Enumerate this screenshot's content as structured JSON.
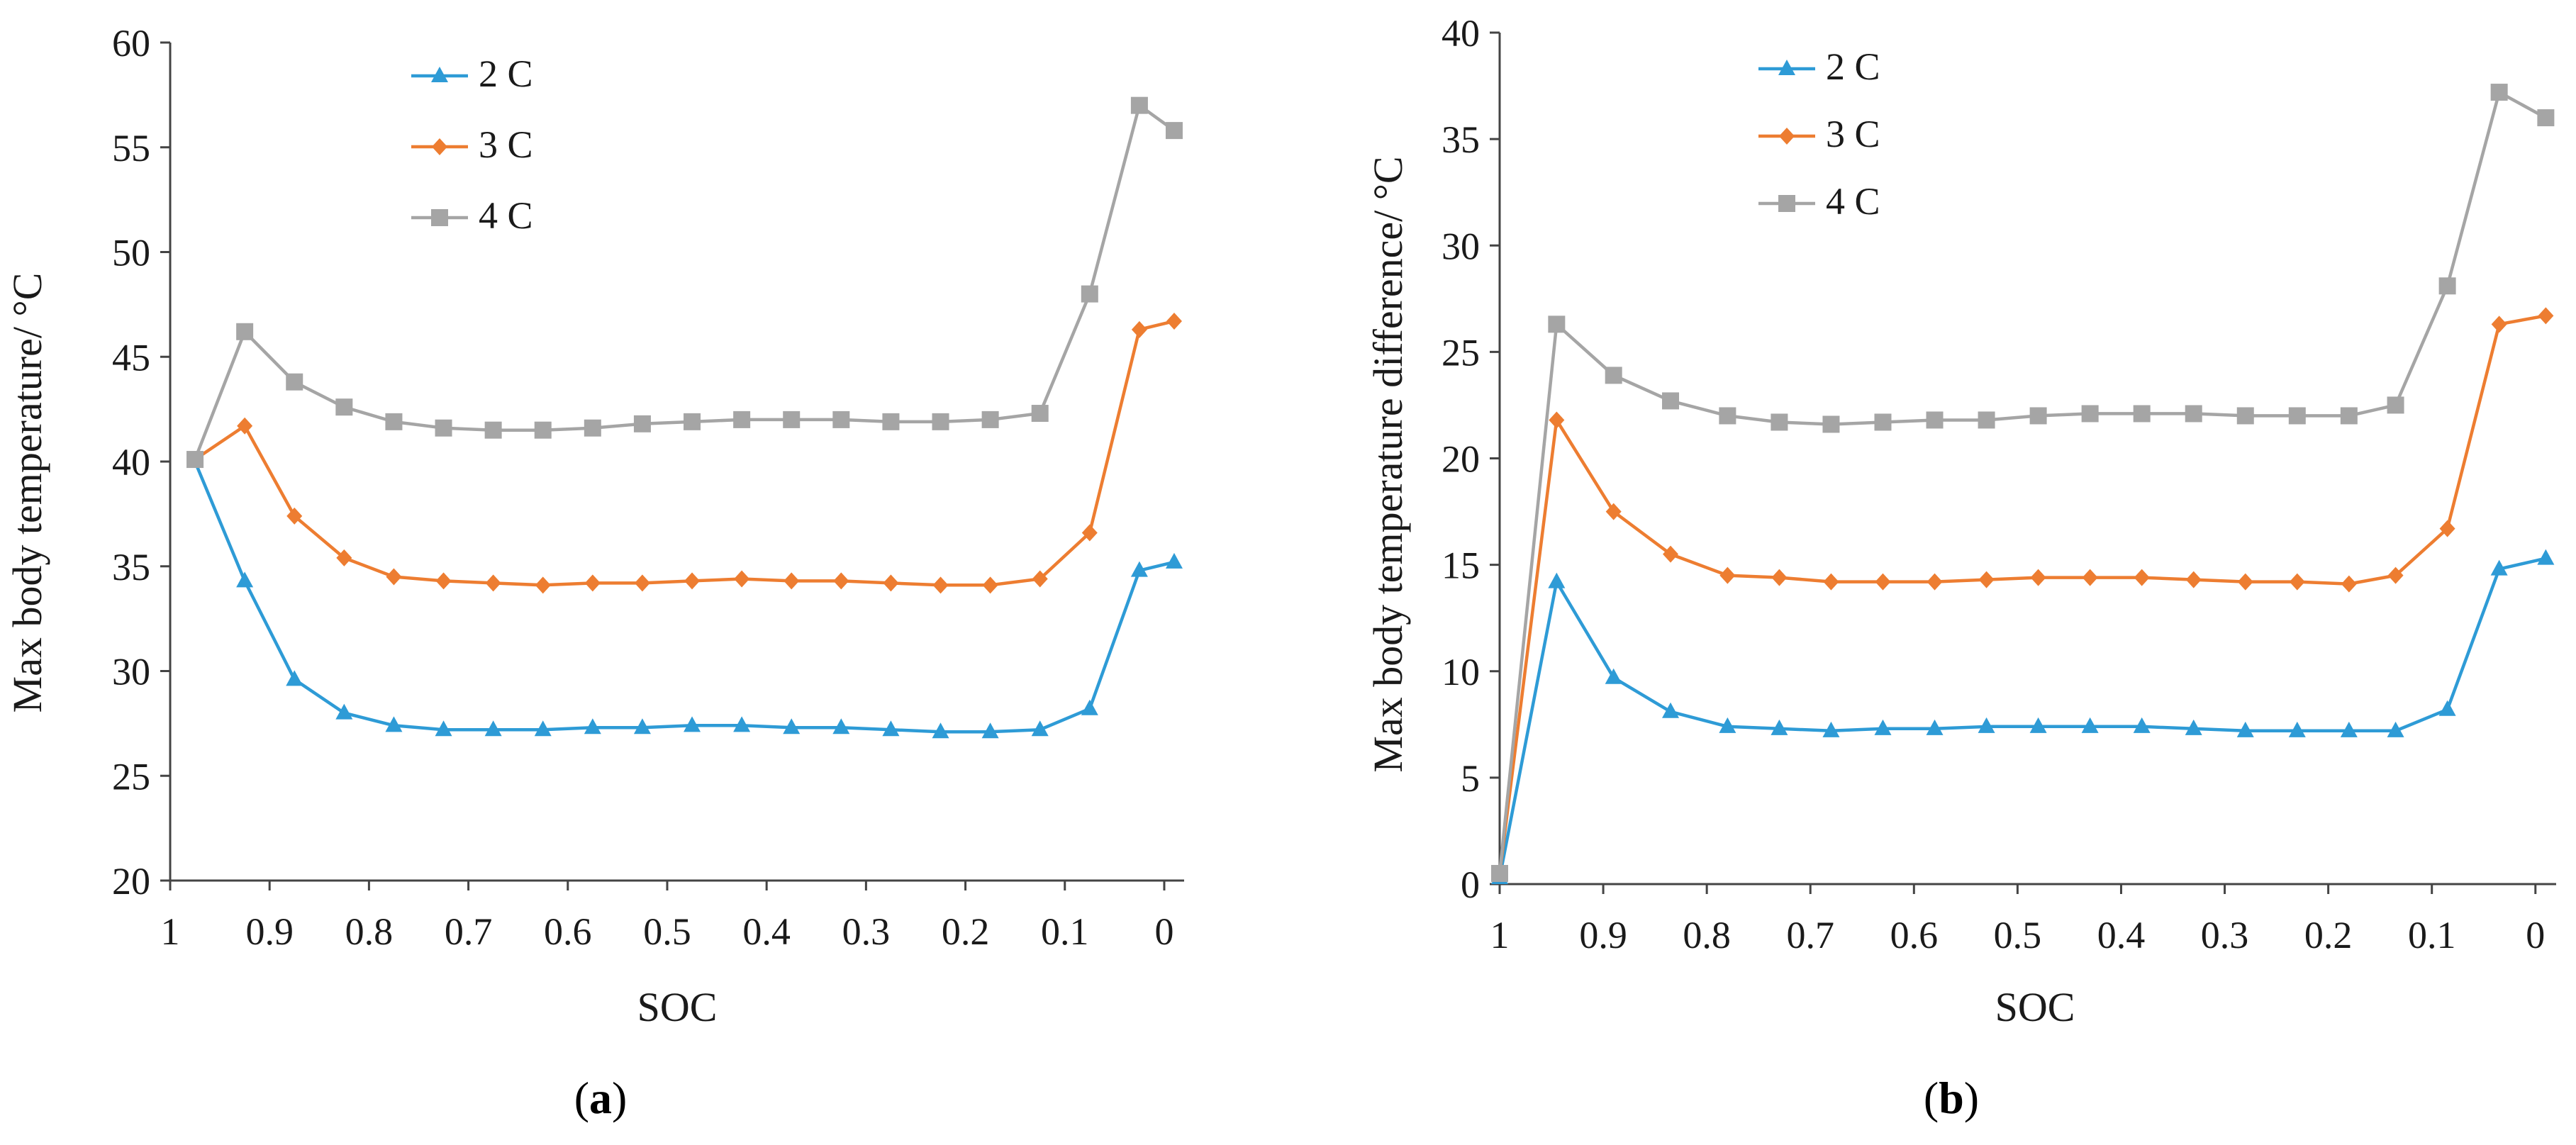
{
  "colors": {
    "2 C": "#2e9bd6",
    "3 C": "#ed7d31",
    "4 C": "#a5a5a5",
    "axis": "#444444"
  },
  "panels": {
    "a": {
      "open": "(",
      "letter": "a",
      "close": ")"
    },
    "b": {
      "open": "(",
      "letter": "b",
      "close": ")"
    }
  },
  "chart_data": [
    {
      "type": "line",
      "panel": "a",
      "title": "",
      "xlabel": "SOC",
      "ylabel": "Max body temperature/ °C",
      "ylim": [
        20,
        60
      ],
      "yticks": [
        20,
        25,
        30,
        35,
        40,
        45,
        50,
        55,
        60
      ],
      "xlim": [
        1.0,
        -0.02
      ],
      "xticks": [
        1,
        0.9,
        0.8,
        0.7,
        0.6,
        0.5,
        0.4,
        0.3,
        0.2,
        0.1,
        0
      ],
      "xtick_labels": [
        "1",
        "0.9",
        "0.8",
        "0.7",
        "0.6",
        "0.5",
        "0.4",
        "0.3",
        "0.2",
        "0.1",
        "0"
      ],
      "x": [
        0.975,
        0.925,
        0.875,
        0.825,
        0.775,
        0.725,
        0.675,
        0.625,
        0.575,
        0.525,
        0.475,
        0.425,
        0.375,
        0.325,
        0.275,
        0.225,
        0.175,
        0.125,
        0.075,
        0.025,
        -0.01
      ],
      "legend_position": "top-center",
      "series": [
        {
          "name": "2 C",
          "marker": "triangle",
          "values": [
            40.0,
            34.3,
            29.6,
            28.0,
            27.4,
            27.2,
            27.2,
            27.2,
            27.3,
            27.3,
            27.4,
            27.4,
            27.3,
            27.3,
            27.2,
            27.1,
            27.1,
            27.2,
            28.2,
            34.8,
            35.2
          ]
        },
        {
          "name": "3 C",
          "marker": "diamond",
          "values": [
            40.1,
            41.7,
            37.4,
            35.4,
            34.5,
            34.3,
            34.2,
            34.1,
            34.2,
            34.2,
            34.3,
            34.4,
            34.3,
            34.3,
            34.2,
            34.1,
            34.1,
            34.4,
            36.6,
            46.3,
            46.7
          ]
        },
        {
          "name": "4 C",
          "marker": "square",
          "values": [
            40.1,
            46.2,
            43.8,
            42.6,
            41.9,
            41.6,
            41.5,
            41.5,
            41.6,
            41.8,
            41.9,
            42.0,
            42.0,
            42.0,
            41.9,
            41.9,
            42.0,
            42.3,
            48.0,
            57.0,
            55.8
          ]
        }
      ]
    },
    {
      "type": "line",
      "panel": "b",
      "title": "",
      "xlabel": "SOC",
      "ylabel": "Max body temperature  difference/ °C",
      "ylim": [
        0,
        40
      ],
      "yticks": [
        0,
        5,
        10,
        15,
        20,
        25,
        30,
        35,
        40
      ],
      "xlim": [
        1.0,
        -0.02
      ],
      "xticks": [
        1,
        0.9,
        0.8,
        0.7,
        0.6,
        0.5,
        0.4,
        0.3,
        0.2,
        0.1,
        0
      ],
      "xtick_labels": [
        "1",
        "0.9",
        "0.8",
        "0.7",
        "0.6",
        "0.5",
        "0.4",
        "0.3",
        "0.2",
        "0.1",
        "0"
      ],
      "x": [
        1.0,
        0.945,
        0.89,
        0.835,
        0.78,
        0.73,
        0.68,
        0.63,
        0.58,
        0.53,
        0.48,
        0.43,
        0.38,
        0.33,
        0.28,
        0.23,
        0.18,
        0.135,
        0.085,
        0.035,
        -0.01
      ],
      "legend_position": "top-center",
      "series": [
        {
          "name": "2 C",
          "marker": "triangle",
          "values": [
            0.3,
            14.2,
            9.7,
            8.1,
            7.4,
            7.3,
            7.2,
            7.3,
            7.3,
            7.4,
            7.4,
            7.4,
            7.4,
            7.3,
            7.2,
            7.2,
            7.2,
            7.2,
            8.2,
            14.8,
            15.3
          ]
        },
        {
          "name": "3 C",
          "marker": "diamond",
          "values": [
            0.5,
            21.8,
            17.5,
            15.5,
            14.5,
            14.4,
            14.2,
            14.2,
            14.2,
            14.3,
            14.4,
            14.4,
            14.4,
            14.3,
            14.2,
            14.2,
            14.1,
            14.5,
            16.7,
            26.3,
            26.7
          ]
        },
        {
          "name": "4 C",
          "marker": "square",
          "values": [
            0.5,
            26.3,
            23.9,
            22.7,
            22.0,
            21.7,
            21.6,
            21.7,
            21.8,
            21.8,
            22.0,
            22.1,
            22.1,
            22.1,
            22.0,
            22.0,
            22.0,
            22.5,
            28.1,
            37.2,
            36.0
          ]
        }
      ]
    }
  ]
}
